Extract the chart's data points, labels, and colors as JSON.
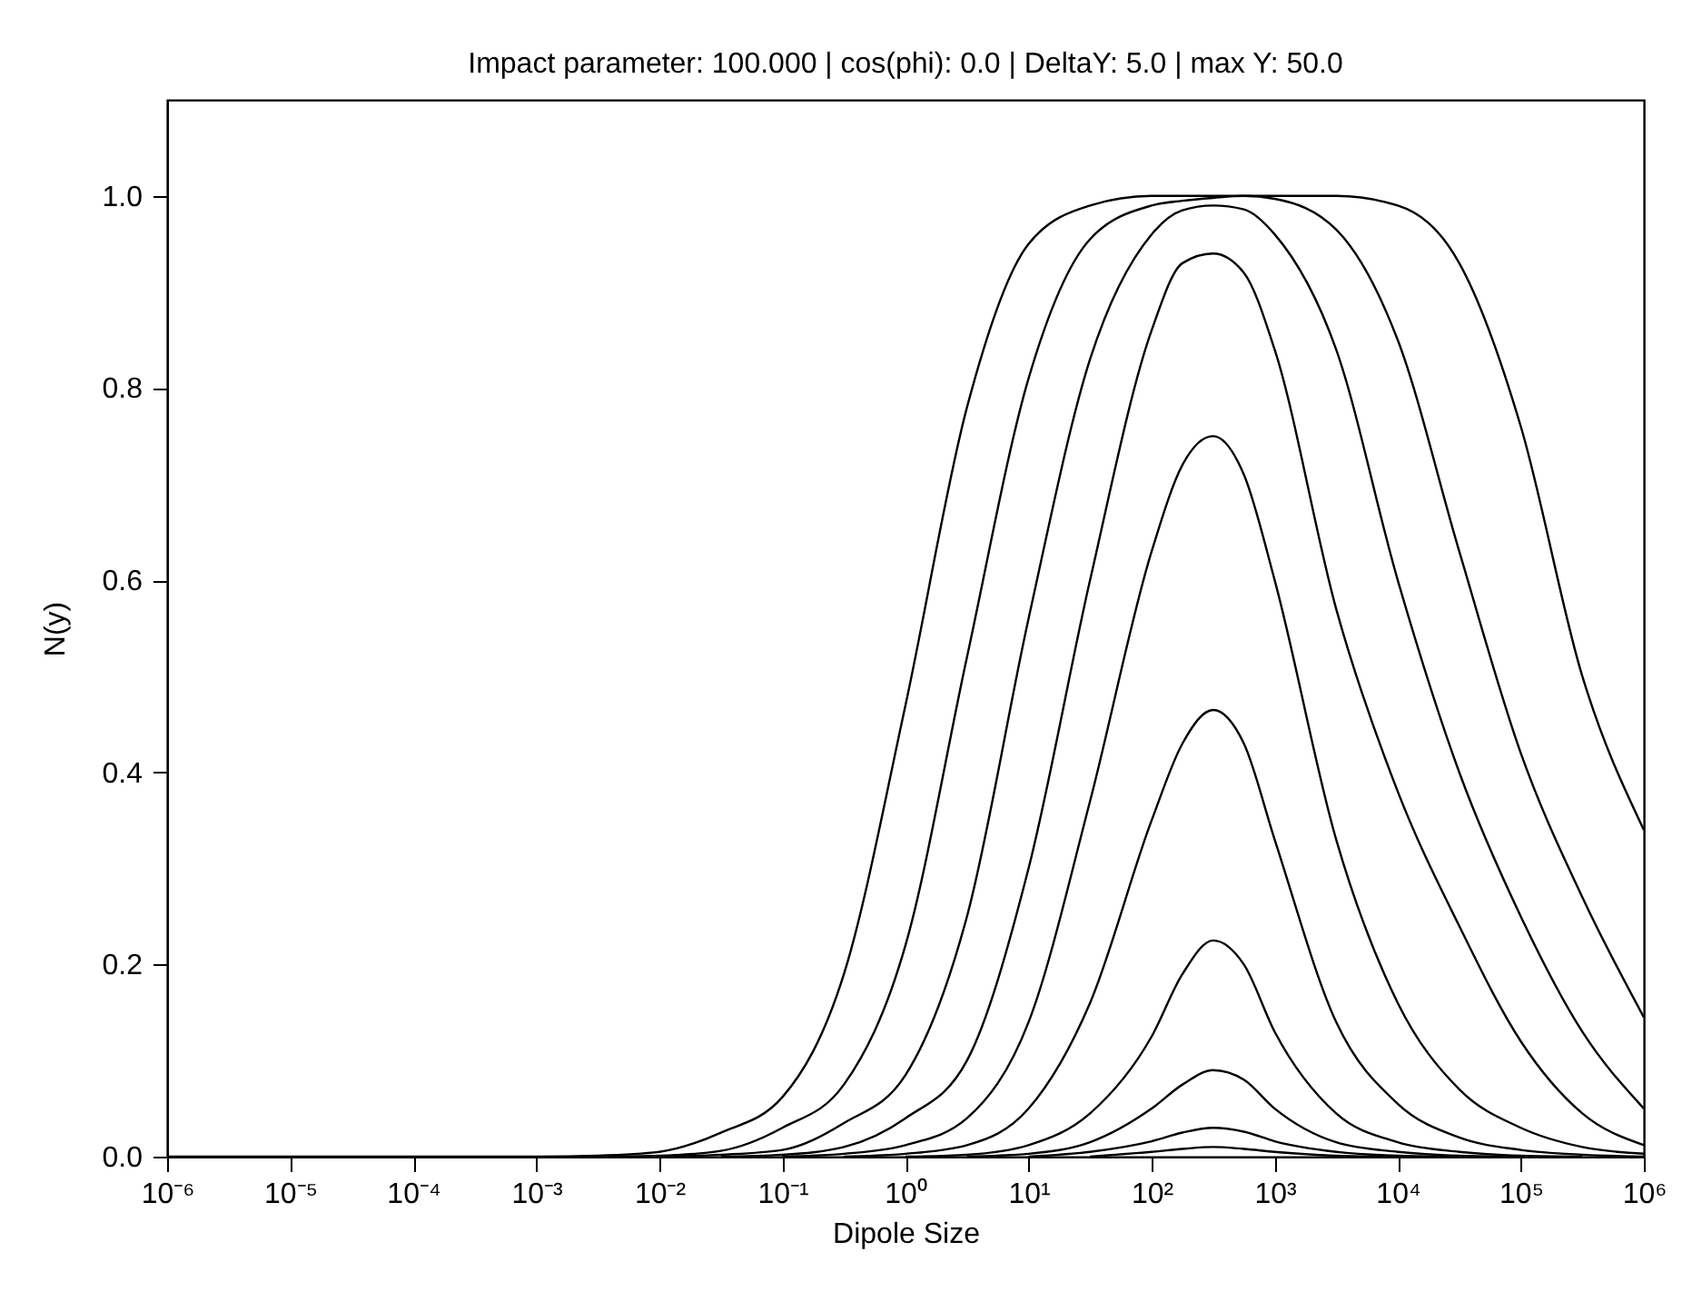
{
  "chart_data": {
    "type": "line",
    "title": "Impact parameter: 100.000 | cos(phi): 0.0 | DeltaY: 5.0 | max Y: 50.0",
    "xlabel": "Dipole Size",
    "ylabel": "N(y)",
    "log": "x",
    "grid": false,
    "legend": false,
    "xlim": [
      1e-06,
      1000000
    ],
    "xticks": [
      {
        "value": 1e-06,
        "label": "10⁻⁶"
      },
      {
        "value": 1e-05,
        "label": "10⁻⁵"
      },
      {
        "value": 0.0001,
        "label": "10⁻⁴"
      },
      {
        "value": 0.001,
        "label": "10⁻³"
      },
      {
        "value": 0.01,
        "label": "10⁻²"
      },
      {
        "value": 0.1,
        "label": "10⁻¹"
      },
      {
        "value": 1,
        "label": "10⁰"
      },
      {
        "value": 10,
        "label": "10¹"
      },
      {
        "value": 100,
        "label": "10²"
      },
      {
        "value": 1000,
        "label": "10³"
      },
      {
        "value": 10000,
        "label": "10⁴"
      },
      {
        "value": 100000,
        "label": "10⁵"
      },
      {
        "value": 1000000,
        "label": "10⁶"
      }
    ],
    "ylim": [
      0,
      1.1
    ],
    "yticks": [
      {
        "value": 0,
        "label": "0.0"
      },
      {
        "value": 0.2,
        "label": "0.2"
      },
      {
        "value": 0.4,
        "label": "0.4"
      },
      {
        "value": 0.6,
        "label": "0.6"
      },
      {
        "value": 0.8,
        "label": "0.8"
      },
      {
        "value": 1,
        "label": "1.0"
      }
    ],
    "x": [
      1e-06,
      0.001,
      0.00316,
      0.01,
      0.0316,
      0.1,
      0.316,
      1,
      3.16,
      10,
      31.6,
      100,
      178,
      316,
      562,
      1000,
      3162,
      10000,
      31623,
      100000,
      316228,
      1000000
    ],
    "series": [
      {
        "color": "#000000",
        "values": [
          0,
          0,
          0.001,
          0.005,
          0.025,
          0.062,
          0.19,
          0.47,
          0.78,
          0.95,
          0.99,
          1,
          1,
          1,
          1,
          1,
          1,
          0.99,
          0.93,
          0.76,
          0.5,
          0.34
        ]
      },
      {
        "color": "#000000",
        "values": [
          null,
          null,
          0,
          0.001,
          0.006,
          0.03,
          0.075,
          0.22,
          0.52,
          0.81,
          0.955,
          0.99,
          0.995,
          0.998,
          1,
          0.997,
          0.965,
          0.85,
          0.63,
          0.42,
          0.27,
          0.145
        ]
      },
      {
        "color": "#000000",
        "values": [
          null,
          null,
          null,
          0,
          0.002,
          0.007,
          0.035,
          0.085,
          0.25,
          0.56,
          0.83,
          0.96,
          0.985,
          0.99,
          0.986,
          0.96,
          0.84,
          0.6,
          0.4,
          0.25,
          0.13,
          0.05
        ]
      },
      {
        "color": "#000000",
        "values": [
          null,
          null,
          null,
          null,
          0,
          0.002,
          0.01,
          0.04,
          0.1,
          0.3,
          0.6,
          0.86,
          0.93,
          0.94,
          0.92,
          0.84,
          0.57,
          0.38,
          0.24,
          0.12,
          0.045,
          0.012
        ]
      },
      {
        "color": "#000000",
        "values": [
          null,
          null,
          null,
          null,
          null,
          0,
          0.003,
          0.012,
          0.04,
          0.14,
          0.37,
          0.63,
          0.72,
          0.75,
          0.71,
          0.6,
          0.33,
          0.16,
          0.07,
          0.03,
          0.01,
          0.003
        ]
      },
      {
        "color": "#000000",
        "values": [
          null,
          null,
          null,
          null,
          null,
          null,
          0,
          0.003,
          0.012,
          0.05,
          0.16,
          0.35,
          0.43,
          0.465,
          0.43,
          0.33,
          0.14,
          0.055,
          0.02,
          0.007,
          0.002,
          0
        ]
      },
      {
        "color": "#000000",
        "values": [
          null,
          null,
          null,
          null,
          null,
          null,
          null,
          0,
          0.002,
          0.012,
          0.045,
          0.125,
          0.19,
          0.225,
          0.2,
          0.13,
          0.045,
          0.015,
          0.005,
          0.001,
          0,
          null
        ]
      },
      {
        "color": "#000000",
        "values": [
          null,
          null,
          null,
          null,
          null,
          null,
          null,
          null,
          0,
          0.003,
          0.015,
          0.05,
          0.075,
          0.09,
          0.08,
          0.05,
          0.015,
          0.005,
          0.001,
          0,
          null,
          null
        ]
      },
      {
        "color": "#000000",
        "values": [
          null,
          null,
          null,
          null,
          null,
          null,
          null,
          null,
          null,
          0,
          0.005,
          0.016,
          0.025,
          0.03,
          0.026,
          0.016,
          0.005,
          0.001,
          0,
          null,
          null,
          null
        ]
      },
      {
        "color": "#000000",
        "values": [
          null,
          null,
          null,
          null,
          null,
          null,
          null,
          null,
          null,
          null,
          0,
          0.005,
          0.008,
          0.01,
          0.008,
          0.005,
          0.001,
          0,
          null,
          null,
          null,
          null
        ]
      }
    ]
  }
}
